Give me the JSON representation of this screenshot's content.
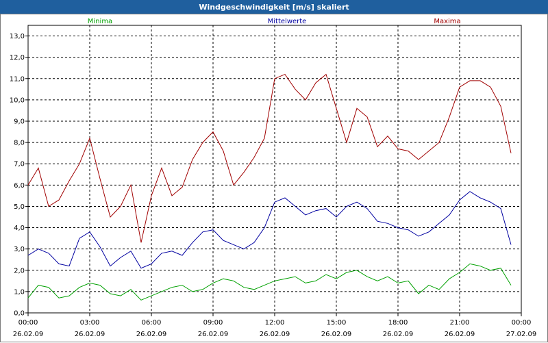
{
  "chart_data": {
    "type": "line",
    "title": "Windgeschwindigkeit [m/s] skaliert",
    "xlabel": "",
    "ylabel": "m/s",
    "ylim": [
      0,
      13.5
    ],
    "grid": true,
    "y_ticks": [
      "0,0",
      "1,0",
      "2,0",
      "3,0",
      "4,0",
      "5,0",
      "6,0",
      "7,0",
      "8,0",
      "9,0",
      "10,0",
      "11,0",
      "12,0",
      "13,0"
    ],
    "x_ticks": [
      {
        "time": "00:00",
        "date": "26.02.09"
      },
      {
        "time": "03:00",
        "date": "26.02.09"
      },
      {
        "time": "06:00",
        "date": "26.02.09"
      },
      {
        "time": "09:00",
        "date": "26.02.09"
      },
      {
        "time": "12:00",
        "date": "26.02.09"
      },
      {
        "time": "15:00",
        "date": "26.02.09"
      },
      {
        "time": "18:00",
        "date": "26.02.09"
      },
      {
        "time": "21:00",
        "date": "26.02.09"
      },
      {
        "time": "00:00",
        "date": "27.02.09"
      }
    ],
    "x_hours": [
      0,
      0.5,
      1,
      1.5,
      2,
      2.5,
      3,
      3.5,
      4,
      4.5,
      5,
      5.5,
      6,
      6.5,
      7,
      7.5,
      8,
      8.5,
      9,
      9.5,
      10,
      10.5,
      11,
      11.5,
      12,
      12.5,
      13,
      13.5,
      14,
      14.5,
      15,
      15.5,
      16,
      16.5,
      17,
      17.5,
      18,
      18.5,
      19,
      19.5,
      20,
      20.5,
      21,
      21.5,
      22,
      22.5,
      23,
      23.5
    ],
    "series": [
      {
        "name": "Minima",
        "color": "#00a000",
        "legend_pos": "left",
        "values": [
          0.7,
          1.3,
          1.2,
          0.7,
          0.8,
          1.2,
          1.4,
          1.3,
          0.9,
          0.8,
          1.1,
          0.6,
          0.8,
          1.0,
          1.2,
          1.3,
          1.0,
          1.1,
          1.4,
          1.6,
          1.5,
          1.2,
          1.1,
          1.3,
          1.5,
          1.6,
          1.7,
          1.4,
          1.5,
          1.8,
          1.6,
          1.9,
          2.0,
          1.7,
          1.5,
          1.7,
          1.4,
          1.5,
          0.9,
          1.3,
          1.1,
          1.6,
          1.9,
          2.3,
          2.2,
          2.0,
          2.1,
          1.3
        ]
      },
      {
        "name": "Mittelwerte",
        "color": "#0000a0",
        "legend_pos": "center",
        "values": [
          2.7,
          3.0,
          2.8,
          2.3,
          2.2,
          3.5,
          3.8,
          3.1,
          2.2,
          2.6,
          2.9,
          2.1,
          2.3,
          2.8,
          2.9,
          2.7,
          3.3,
          3.8,
          3.9,
          3.4,
          3.2,
          3.0,
          3.3,
          4.0,
          5.2,
          5.4,
          5.0,
          4.6,
          4.8,
          4.9,
          4.5,
          5.0,
          5.2,
          4.9,
          4.3,
          4.2,
          4.0,
          3.9,
          3.6,
          3.8,
          4.2,
          4.6,
          5.3,
          5.7,
          5.4,
          5.2,
          4.9,
          3.2
        ]
      },
      {
        "name": "Maxima",
        "color": "#a00000",
        "legend_pos": "right",
        "values": [
          6.0,
          6.8,
          5.0,
          5.3,
          6.2,
          7.0,
          8.2,
          6.3,
          4.5,
          5.0,
          6.0,
          3.3,
          5.5,
          6.8,
          5.5,
          5.9,
          7.2,
          8.0,
          8.5,
          7.6,
          6.0,
          6.6,
          7.3,
          8.2,
          11.0,
          11.2,
          10.5,
          10.0,
          10.8,
          11.2,
          9.6,
          8.0,
          9.6,
          9.2,
          7.8,
          8.3,
          7.7,
          7.6,
          7.2,
          7.6,
          8.0,
          9.2,
          10.6,
          10.9,
          10.9,
          10.6,
          9.7,
          7.5
        ]
      }
    ]
  }
}
